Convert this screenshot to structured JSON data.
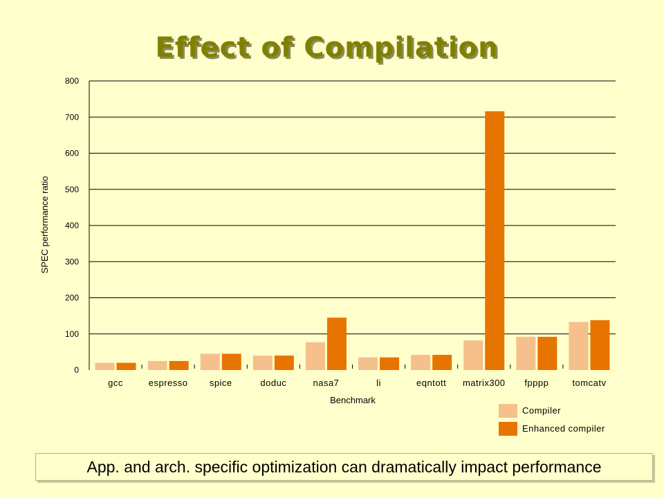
{
  "slide": {
    "title": "Effect of Compilation",
    "caption": "App. and arch. specific optimization can dramatically impact performance"
  },
  "chart_data": {
    "type": "bar",
    "xlabel": "Benchmark",
    "ylabel": "SPEC performance ratio",
    "ylim": [
      0,
      800
    ],
    "yticks": [
      0,
      100,
      200,
      300,
      400,
      500,
      600,
      700,
      800
    ],
    "grid": true,
    "legend_position": "bottom-right",
    "categories": [
      "gcc",
      "espresso",
      "spice",
      "doduc",
      "nasa7",
      "li",
      "eqntott",
      "matrix300",
      "fpppp",
      "tomcatv"
    ],
    "series": [
      {
        "name": "Compiler",
        "color": "#f5c08c",
        "values": [
          20,
          25,
          45,
          40,
          77,
          35,
          42,
          82,
          92,
          133
        ]
      },
      {
        "name": "Enhanced compiler",
        "color": "#e87400",
        "values": [
          20,
          25,
          45,
          40,
          145,
          35,
          42,
          716,
          92,
          138
        ]
      }
    ]
  }
}
